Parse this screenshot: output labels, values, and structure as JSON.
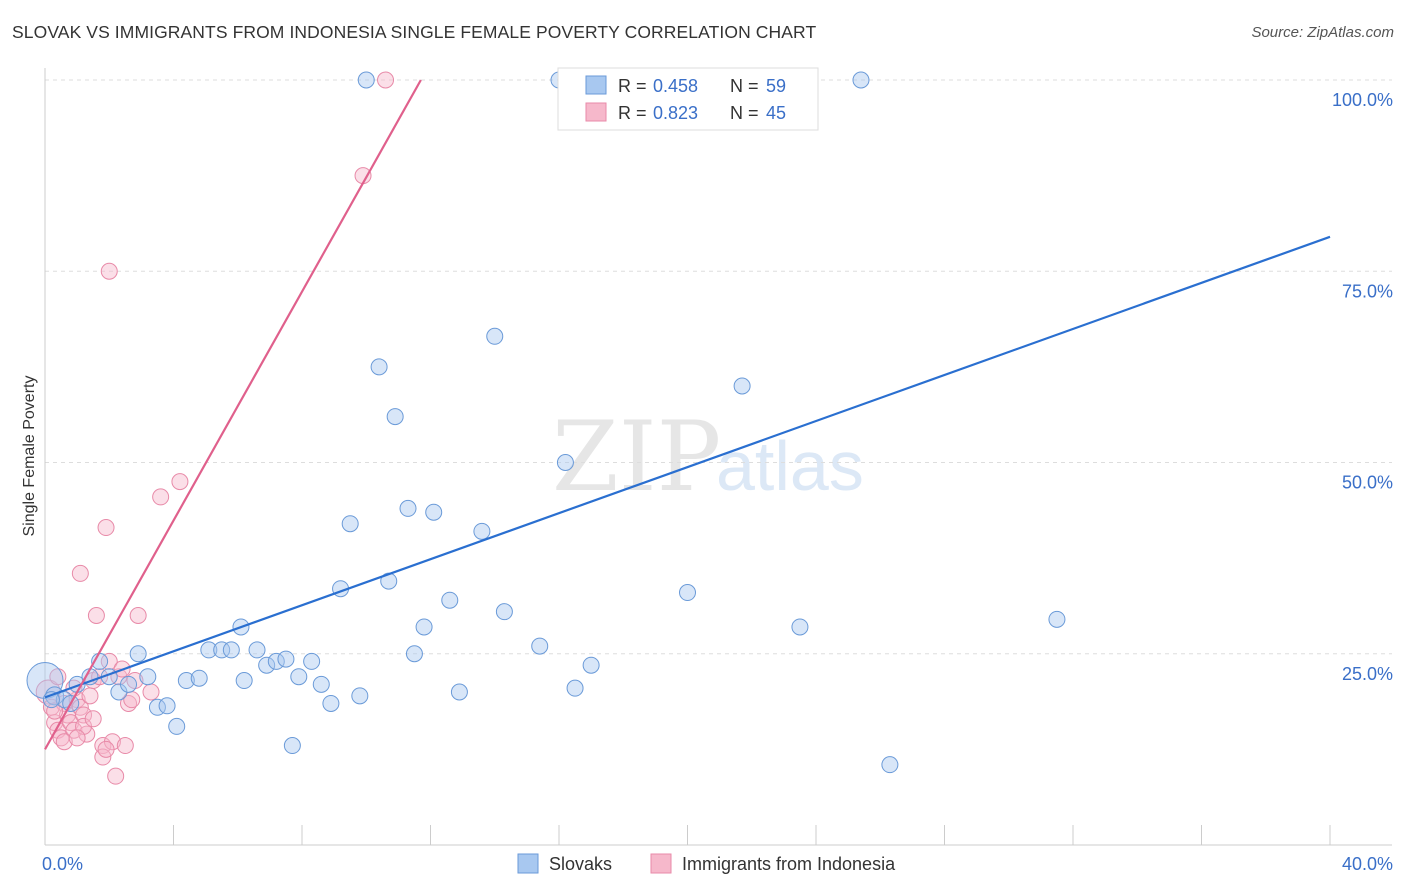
{
  "title": "SLOVAK VS IMMIGRANTS FROM INDONESIA SINGLE FEMALE POVERTY CORRELATION CHART",
  "source": "Source: ZipAtlas.com",
  "watermark": {
    "zip": "ZIP",
    "atlas": "atlas"
  },
  "legend_top": [
    {
      "r_label": "R =",
      "r_value": "0.458",
      "n_label": "N =",
      "n_value": "59"
    },
    {
      "r_label": "R =",
      "r_value": "0.823",
      "n_label": "N =",
      "n_value": "45"
    }
  ],
  "colors": {
    "blue_fill": "#a8c8f0",
    "blue_stroke": "#6a9ad8",
    "blue_line": "#2a6fd0",
    "pink_fill": "#f6b8cb",
    "pink_stroke": "#e88aa8",
    "pink_line": "#e0608c",
    "value_text": "#3a6fc8",
    "grid": "#dddddd"
  },
  "chart_data": {
    "type": "scatter",
    "title": "SLOVAK VS IMMIGRANTS FROM INDONESIA SINGLE FEMALE POVERTY CORRELATION CHART",
    "xlabel": "",
    "ylabel": "Single Female Poverty",
    "xlim": [
      0,
      40
    ],
    "ylim": [
      0,
      100
    ],
    "x_tick_labels": [
      "0.0%",
      "40.0%"
    ],
    "y_tick_values": [
      25,
      50,
      75,
      100
    ],
    "y_tick_labels": [
      "25.0%",
      "50.0%",
      "75.0%",
      "100.0%"
    ],
    "grid": true,
    "legend_position": "bottom",
    "series": [
      {
        "name": "Slovaks",
        "r": 0.458,
        "n": 59,
        "trend": {
          "x": [
            0,
            40
          ],
          "y": [
            19.3,
            79.5
          ]
        },
        "points": [
          {
            "x": 0.0,
            "y": 21.5,
            "s": 18
          },
          {
            "x": 0.3,
            "y": 19.5,
            "s": 9
          },
          {
            "x": 0.6,
            "y": 19.0,
            "s": 8
          },
          {
            "x": 0.8,
            "y": 18.5,
            "s": 8
          },
          {
            "x": 1.0,
            "y": 21.0,
            "s": 8
          },
          {
            "x": 1.4,
            "y": 22.0,
            "s": 8
          },
          {
            "x": 1.7,
            "y": 24.0,
            "s": 8
          },
          {
            "x": 2.0,
            "y": 22.0,
            "s": 8
          },
          {
            "x": 2.3,
            "y": 20.0,
            "s": 8
          },
          {
            "x": 2.6,
            "y": 21.0,
            "s": 8
          },
          {
            "x": 2.9,
            "y": 25.0,
            "s": 8
          },
          {
            "x": 3.2,
            "y": 22.0,
            "s": 8
          },
          {
            "x": 3.5,
            "y": 18.0,
            "s": 8
          },
          {
            "x": 3.8,
            "y": 18.2,
            "s": 8
          },
          {
            "x": 4.1,
            "y": 15.5,
            "s": 8
          },
          {
            "x": 4.4,
            "y": 21.5,
            "s": 8
          },
          {
            "x": 4.8,
            "y": 21.8,
            "s": 8
          },
          {
            "x": 5.1,
            "y": 25.5,
            "s": 8
          },
          {
            "x": 5.5,
            "y": 25.5,
            "s": 8
          },
          {
            "x": 5.8,
            "y": 25.5,
            "s": 8
          },
          {
            "x": 6.1,
            "y": 28.5,
            "s": 8
          },
          {
            "x": 6.2,
            "y": 21.5,
            "s": 8
          },
          {
            "x": 6.6,
            "y": 25.5,
            "s": 8
          },
          {
            "x": 6.9,
            "y": 23.5,
            "s": 8
          },
          {
            "x": 7.2,
            "y": 24.0,
            "s": 8
          },
          {
            "x": 7.5,
            "y": 24.3,
            "s": 8
          },
          {
            "x": 7.7,
            "y": 13.0,
            "s": 8
          },
          {
            "x": 7.9,
            "y": 22.0,
            "s": 8
          },
          {
            "x": 8.3,
            "y": 24.0,
            "s": 8
          },
          {
            "x": 8.6,
            "y": 21.0,
            "s": 8
          },
          {
            "x": 8.9,
            "y": 18.5,
            "s": 8
          },
          {
            "x": 9.2,
            "y": 33.5,
            "s": 8
          },
          {
            "x": 9.5,
            "y": 42.0,
            "s": 8
          },
          {
            "x": 9.8,
            "y": 19.5,
            "s": 8
          },
          {
            "x": 10.0,
            "y": 100.0,
            "s": 8
          },
          {
            "x": 10.4,
            "y": 62.5,
            "s": 8
          },
          {
            "x": 10.7,
            "y": 34.5,
            "s": 8
          },
          {
            "x": 10.9,
            "y": 56.0,
            "s": 8
          },
          {
            "x": 11.3,
            "y": 44.0,
            "s": 8
          },
          {
            "x": 11.5,
            "y": 25.0,
            "s": 8
          },
          {
            "x": 11.8,
            "y": 28.5,
            "s": 8
          },
          {
            "x": 12.1,
            "y": 43.5,
            "s": 8
          },
          {
            "x": 12.6,
            "y": 32.0,
            "s": 8
          },
          {
            "x": 12.9,
            "y": 20.0,
            "s": 8
          },
          {
            "x": 13.6,
            "y": 41.0,
            "s": 8
          },
          {
            "x": 14.0,
            "y": 66.5,
            "s": 8
          },
          {
            "x": 14.3,
            "y": 30.5,
            "s": 8
          },
          {
            "x": 15.4,
            "y": 26.0,
            "s": 8
          },
          {
            "x": 16.0,
            "y": 100.0,
            "s": 8
          },
          {
            "x": 16.2,
            "y": 50.0,
            "s": 8
          },
          {
            "x": 16.5,
            "y": 20.5,
            "s": 8
          },
          {
            "x": 17.0,
            "y": 23.5,
            "s": 8
          },
          {
            "x": 20.0,
            "y": 33.0,
            "s": 8
          },
          {
            "x": 21.7,
            "y": 60.0,
            "s": 8
          },
          {
            "x": 23.5,
            "y": 28.5,
            "s": 8
          },
          {
            "x": 25.4,
            "y": 100.0,
            "s": 8
          },
          {
            "x": 26.3,
            "y": 10.5,
            "s": 8
          },
          {
            "x": 31.5,
            "y": 29.5,
            "s": 8
          },
          {
            "x": 0.2,
            "y": 19.0,
            "s": 8
          }
        ]
      },
      {
        "name": "Immigrants from Indonesia",
        "r": 0.823,
        "n": 45,
        "trend": {
          "x": [
            0,
            11.7
          ],
          "y": [
            12.5,
            100
          ]
        },
        "points": [
          {
            "x": 0.1,
            "y": 20.0,
            "s": 12
          },
          {
            "x": 0.2,
            "y": 18.0,
            "s": 8
          },
          {
            "x": 0.3,
            "y": 16.0,
            "s": 8
          },
          {
            "x": 0.4,
            "y": 15.0,
            "s": 8
          },
          {
            "x": 0.5,
            "y": 14.0,
            "s": 8
          },
          {
            "x": 0.6,
            "y": 18.5,
            "s": 8
          },
          {
            "x": 0.7,
            "y": 17.0,
            "s": 8
          },
          {
            "x": 0.8,
            "y": 16.0,
            "s": 8
          },
          {
            "x": 0.9,
            "y": 15.0,
            "s": 8
          },
          {
            "x": 1.0,
            "y": 19.0,
            "s": 8
          },
          {
            "x": 1.1,
            "y": 18.0,
            "s": 8
          },
          {
            "x": 1.2,
            "y": 17.0,
            "s": 8
          },
          {
            "x": 1.3,
            "y": 14.5,
            "s": 8
          },
          {
            "x": 1.4,
            "y": 19.5,
            "s": 8
          },
          {
            "x": 1.5,
            "y": 21.5,
            "s": 8
          },
          {
            "x": 1.6,
            "y": 30.0,
            "s": 8
          },
          {
            "x": 1.7,
            "y": 22.0,
            "s": 8
          },
          {
            "x": 1.8,
            "y": 13.0,
            "s": 8
          },
          {
            "x": 1.9,
            "y": 41.5,
            "s": 8
          },
          {
            "x": 2.0,
            "y": 24.0,
            "s": 8
          },
          {
            "x": 2.1,
            "y": 13.5,
            "s": 8
          },
          {
            "x": 2.2,
            "y": 9.0,
            "s": 8
          },
          {
            "x": 2.3,
            "y": 22.0,
            "s": 8
          },
          {
            "x": 2.5,
            "y": 13.0,
            "s": 8
          },
          {
            "x": 2.6,
            "y": 18.5,
            "s": 8
          },
          {
            "x": 2.8,
            "y": 21.5,
            "s": 8
          },
          {
            "x": 2.9,
            "y": 30.0,
            "s": 8
          },
          {
            "x": 3.3,
            "y": 20.0,
            "s": 8
          },
          {
            "x": 3.6,
            "y": 45.5,
            "s": 8
          },
          {
            "x": 4.2,
            "y": 47.5,
            "s": 8
          },
          {
            "x": 1.1,
            "y": 35.5,
            "s": 8
          },
          {
            "x": 2.0,
            "y": 75.0,
            "s": 8
          },
          {
            "x": 9.9,
            "y": 87.5,
            "s": 8
          },
          {
            "x": 10.6,
            "y": 100.0,
            "s": 8
          },
          {
            "x": 0.4,
            "y": 22.0,
            "s": 8
          },
          {
            "x": 0.9,
            "y": 20.5,
            "s": 8
          },
          {
            "x": 1.2,
            "y": 15.5,
            "s": 8
          },
          {
            "x": 0.6,
            "y": 13.5,
            "s": 8
          },
          {
            "x": 1.8,
            "y": 11.5,
            "s": 8
          },
          {
            "x": 2.4,
            "y": 23.0,
            "s": 8
          },
          {
            "x": 1.5,
            "y": 16.5,
            "s": 8
          },
          {
            "x": 0.3,
            "y": 17.5,
            "s": 8
          },
          {
            "x": 1.9,
            "y": 12.5,
            "s": 8
          },
          {
            "x": 1.0,
            "y": 14.0,
            "s": 8
          },
          {
            "x": 2.7,
            "y": 19.0,
            "s": 8
          }
        ]
      }
    ]
  }
}
